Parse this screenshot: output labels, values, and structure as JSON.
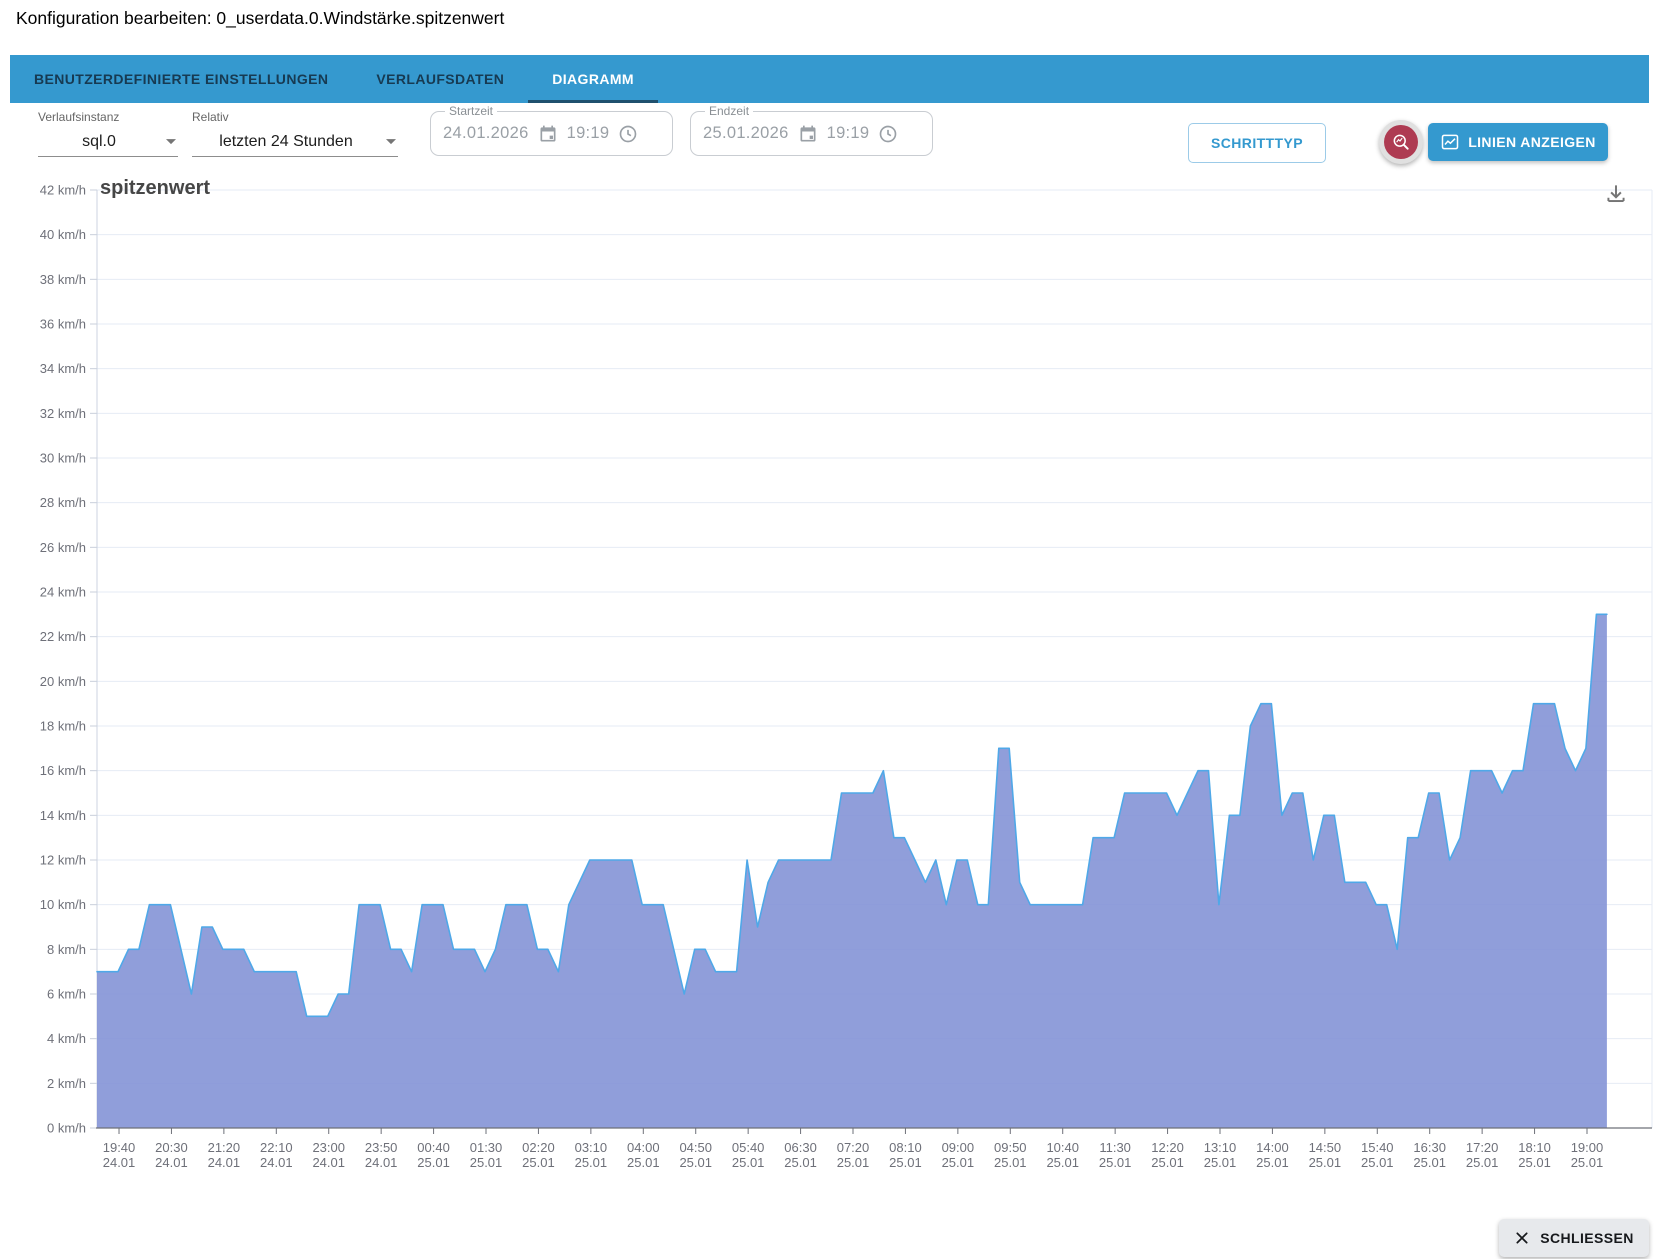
{
  "window": {
    "title": "Konfiguration bearbeiten: 0_userdata.0.Windstärke.spitzenwert"
  },
  "colors": {
    "tab_bar": "#3599cf",
    "tab_text_inactive": "#173a52",
    "tab_text_active": "#ffffff",
    "tab_indicator": "#1f506e",
    "accent_blue": "#3499cf",
    "red_button": "#ae3b52",
    "red_button_ring": "#e0e0e0",
    "area_fill": "#8494d6",
    "area_line": "#4fa8e8",
    "grid_line": "#e6ebf5",
    "axis_line": "#6e7079",
    "tick_text": "#6e7079",
    "close_button_bg": "#e7e9ec"
  },
  "tabs": [
    {
      "label": "BENUTZERDEFINIERTE EINSTELLUNGEN",
      "active": false
    },
    {
      "label": "VERLAUFSDATEN",
      "active": false
    },
    {
      "label": "DIAGRAMM",
      "active": true
    }
  ],
  "toolbar": {
    "instance": {
      "label": "Verlaufsinstanz",
      "value": "sql.0"
    },
    "relative": {
      "label": "Relativ",
      "value": "letzten 24 Stunden"
    },
    "start": {
      "label": "Startzeit",
      "date": "24.01.2026",
      "time": "19:19"
    },
    "end": {
      "label": "Endzeit",
      "date": "25.01.2026",
      "time": "19:19"
    },
    "step_type_label": "SCHRITTTYP",
    "lines_label": "LINIEN ANZEIGEN"
  },
  "footer": {
    "close_label": "SCHLIESSEN"
  },
  "icons": {
    "dropdown": "caret-down",
    "calendar": "calendar-icon",
    "clock": "clock-icon",
    "zoom_chart": "magnifier-chart-icon",
    "show_lines": "line-chart-icon",
    "download": "download-icon",
    "close": "x-icon"
  },
  "chart_data": {
    "type": "area",
    "title": "spitzenwert",
    "y_unit": "km/h",
    "ylim": [
      0,
      42
    ],
    "y_tick_step": 2,
    "grid": true,
    "legend_position": "none",
    "step_mode": "linear-10min-samples",
    "x_range_start": "24.01.2026 19:19",
    "x_range_end": "25.01.2026 19:19",
    "x_total_minutes": 1483,
    "x_first_tick_minute": 21,
    "x_tick_interval_minutes": 50,
    "sample_interval_minutes": 10,
    "x_tick_labels": [
      {
        "time": "19:40",
        "date": "24.01"
      },
      {
        "time": "20:30",
        "date": "24.01"
      },
      {
        "time": "21:20",
        "date": "24.01"
      },
      {
        "time": "22:10",
        "date": "24.01"
      },
      {
        "time": "23:00",
        "date": "24.01"
      },
      {
        "time": "23:50",
        "date": "24.01"
      },
      {
        "time": "00:40",
        "date": "25.01"
      },
      {
        "time": "01:30",
        "date": "25.01"
      },
      {
        "time": "02:20",
        "date": "25.01"
      },
      {
        "time": "03:10",
        "date": "25.01"
      },
      {
        "time": "04:00",
        "date": "25.01"
      },
      {
        "time": "04:50",
        "date": "25.01"
      },
      {
        "time": "05:40",
        "date": "25.01"
      },
      {
        "time": "06:30",
        "date": "25.01"
      },
      {
        "time": "07:20",
        "date": "25.01"
      },
      {
        "time": "08:10",
        "date": "25.01"
      },
      {
        "time": "09:00",
        "date": "25.01"
      },
      {
        "time": "09:50",
        "date": "25.01"
      },
      {
        "time": "10:40",
        "date": "25.01"
      },
      {
        "time": "11:30",
        "date": "25.01"
      },
      {
        "time": "12:20",
        "date": "25.01"
      },
      {
        "time": "13:10",
        "date": "25.01"
      },
      {
        "time": "14:00",
        "date": "25.01"
      },
      {
        "time": "14:50",
        "date": "25.01"
      },
      {
        "time": "15:40",
        "date": "25.01"
      },
      {
        "time": "16:30",
        "date": "25.01"
      },
      {
        "time": "17:20",
        "date": "25.01"
      },
      {
        "time": "18:10",
        "date": "25.01"
      },
      {
        "time": "19:00",
        "date": "25.01"
      }
    ],
    "values": [
      7,
      7,
      7,
      8,
      8,
      10,
      10,
      10,
      8,
      6,
      9,
      9,
      8,
      8,
      8,
      7,
      7,
      7,
      7,
      7,
      5,
      5,
      5,
      6,
      6,
      10,
      10,
      10,
      8,
      8,
      7,
      10,
      10,
      10,
      8,
      8,
      8,
      7,
      8,
      10,
      10,
      10,
      8,
      8,
      7,
      10,
      11,
      12,
      12,
      12,
      12,
      12,
      10,
      10,
      10,
      8,
      6,
      8,
      8,
      7,
      7,
      7,
      12,
      9,
      11,
      12,
      12,
      12,
      12,
      12,
      12,
      15,
      15,
      15,
      15,
      16,
      13,
      13,
      12,
      11,
      12,
      10,
      12,
      12,
      10,
      10,
      17,
      17,
      11,
      10,
      10,
      10,
      10,
      10,
      10,
      13,
      13,
      13,
      15,
      15,
      15,
      15,
      15,
      14,
      15,
      16,
      16,
      10,
      14,
      14,
      18,
      19,
      19,
      14,
      15,
      15,
      12,
      14,
      14,
      11,
      11,
      11,
      10,
      10,
      8,
      13,
      13,
      15,
      15,
      12,
      13,
      16,
      16,
      16,
      15,
      16,
      16,
      19,
      19,
      19,
      17,
      16,
      17,
      23,
      23
    ]
  }
}
